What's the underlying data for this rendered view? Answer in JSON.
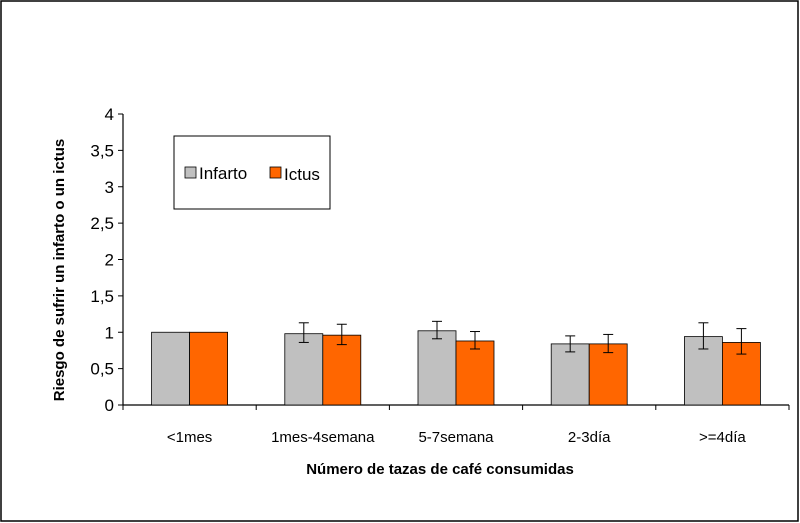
{
  "chart_data": {
    "type": "bar",
    "title": "",
    "xlabel": "Número de tazas de café consumidas",
    "ylabel": "Riesgo de sufrir un infarto o un ictus",
    "ylim": [
      0,
      4
    ],
    "yticks": [
      "0",
      "0,5",
      "1",
      "1,5",
      "2",
      "2,5",
      "3",
      "3,5",
      "4"
    ],
    "ytick_values": [
      0,
      0.5,
      1,
      1.5,
      2,
      2.5,
      3,
      3.5,
      4
    ],
    "grid": false,
    "legend_position": "top-left",
    "categories": [
      "<1mes",
      "1mes-4semana",
      "5-7semana",
      "2-3día",
      ">=4día"
    ],
    "series": [
      {
        "name": "Infarto",
        "color": "#c0c0c0",
        "values": [
          1.0,
          0.98,
          1.02,
          0.84,
          0.94
        ],
        "err_low": [
          0.0,
          0.86,
          0.91,
          0.73,
          0.77
        ],
        "err_high": [
          0.0,
          1.13,
          1.15,
          0.95,
          1.13
        ]
      },
      {
        "name": "Ictus",
        "color": "#ff6600",
        "values": [
          1.0,
          0.96,
          0.88,
          0.84,
          0.86
        ],
        "err_low": [
          0.0,
          0.83,
          0.77,
          0.72,
          0.7
        ],
        "err_high": [
          0.0,
          1.11,
          1.01,
          0.97,
          1.05
        ]
      }
    ]
  }
}
